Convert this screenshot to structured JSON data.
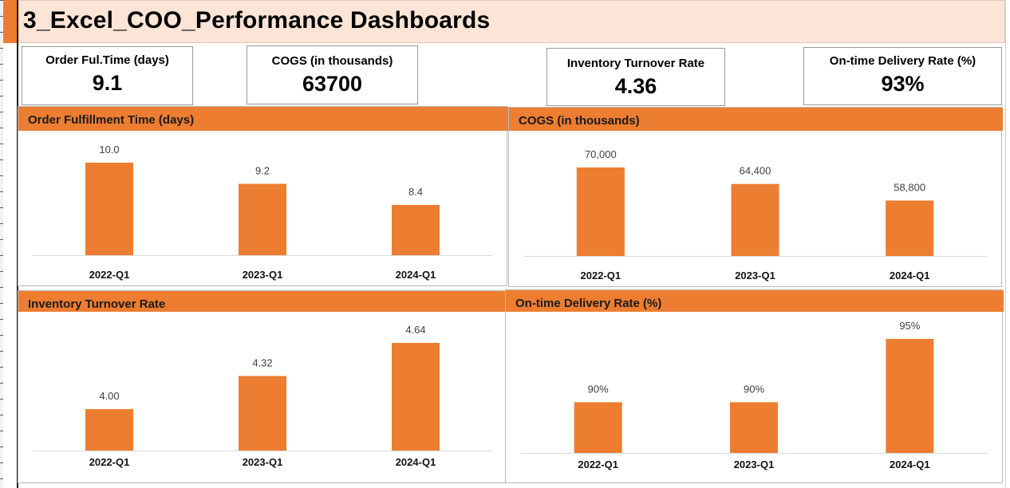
{
  "title": "3_Excel_COO_Performance Dashboards",
  "colors": {
    "accent": "#ed7d31",
    "title_band": "#fce4d6",
    "axis": "#d9d9d9"
  },
  "kpis": [
    {
      "label": "Order Ful.Time (days)",
      "value": "9.1"
    },
    {
      "label": "COGS (in thousands)",
      "value": "63700"
    },
    {
      "label": "Inventory Turnover Rate",
      "value": "4.36"
    },
    {
      "label": "On-time Delivery Rate (%)",
      "value": "93%"
    }
  ],
  "panels": [
    {
      "header": "Order Fulfillment Time (days)"
    },
    {
      "header": "COGS (in thousands)"
    },
    {
      "header": "Inventory Turnover Rate"
    },
    {
      "header": "On-time Delivery Rate (%)"
    }
  ],
  "chart_data": [
    {
      "type": "bar",
      "categories": [
        "2022-Q1",
        "2023-Q1",
        "2024-Q1"
      ],
      "values": [
        10.0,
        9.2,
        8.4
      ],
      "data_labels": [
        "10.0",
        "9.2",
        "8.4"
      ],
      "ylim": [
        6.5,
        10
      ],
      "grid": false,
      "color": "#ed7d31"
    },
    {
      "type": "bar",
      "categories": [
        "2022-Q1",
        "2023-Q1",
        "2024-Q1"
      ],
      "values": [
        70000,
        64400,
        58800
      ],
      "data_labels": [
        "70,000",
        "64,400",
        "58,800"
      ],
      "ylim": [
        40000,
        70000
      ],
      "grid": false,
      "color": "#ed7d31"
    },
    {
      "type": "bar",
      "categories": [
        "2022-Q1",
        "2023-Q1",
        "2024-Q1"
      ],
      "values": [
        4.0,
        4.32,
        4.64
      ],
      "data_labels": [
        "4.00",
        "4.32",
        "4.64"
      ],
      "ylim": [
        3.6,
        4.64
      ],
      "grid": false,
      "color": "#ed7d31"
    },
    {
      "type": "bar",
      "categories": [
        "2022-Q1",
        "2023-Q1",
        "2024-Q1"
      ],
      "values": [
        90,
        90,
        95
      ],
      "data_labels": [
        "90%",
        "90%",
        "95%"
      ],
      "ylim": [
        86,
        95
      ],
      "grid": false,
      "color": "#ed7d31"
    }
  ]
}
